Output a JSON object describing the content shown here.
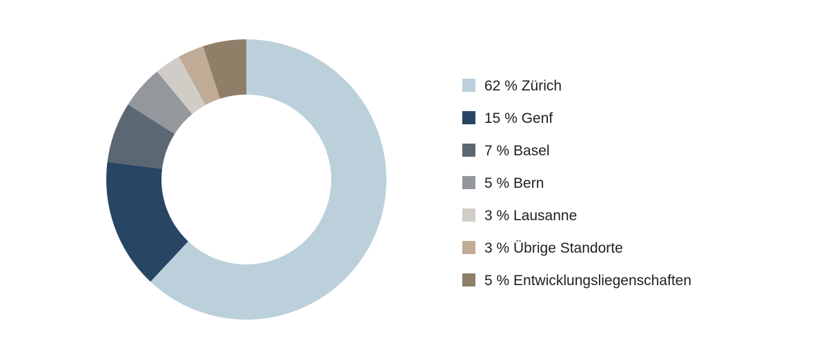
{
  "chart_data": {
    "type": "pie",
    "variant": "donut",
    "title": "",
    "legend_position": "right",
    "slices": [
      {
        "label": "62 % Zürich",
        "value": 62,
        "color": "#bbd0da"
      },
      {
        "label": "15 % Genf",
        "value": 15,
        "color": "#284564"
      },
      {
        "label": "7 % Basel",
        "value": 7,
        "color": "#5b6873"
      },
      {
        "label": "5 % Bern",
        "value": 5,
        "color": "#94989c"
      },
      {
        "label": "3 % Lausanne",
        "value": 3,
        "color": "#d0cdc6"
      },
      {
        "label": "3 % Übrige Standorte",
        "value": 3,
        "color": "#c0ab96"
      },
      {
        "label": "5 % Entwicklungsliegenschaften",
        "value": 5,
        "color": "#8f7e68"
      }
    ]
  }
}
